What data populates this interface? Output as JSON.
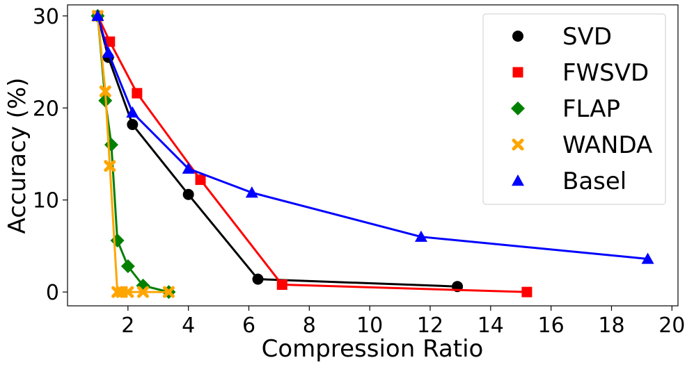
{
  "chart_data": {
    "type": "line",
    "title": "",
    "xlabel": "Compression Ratio",
    "ylabel": "Accuracy (%)",
    "xlim": [
      0,
      20.2
    ],
    "ylim": [
      -1.5,
      31.2
    ],
    "xticks": [
      2,
      4,
      6,
      8,
      10,
      12,
      14,
      16,
      18,
      20
    ],
    "yticks": [
      0,
      10,
      20,
      30
    ],
    "xtick_labels": [
      "2",
      "4",
      "6",
      "8",
      "10",
      "12",
      "14",
      "16",
      "18",
      "20"
    ],
    "ytick_labels": [
      "0",
      "10",
      "20",
      "30"
    ],
    "grid": false,
    "legend_position": "top-right",
    "series": [
      {
        "name": "SVD",
        "color": "#000000",
        "marker": "circle",
        "x": [
          1.0,
          1.35,
          2.15,
          4.0,
          6.3,
          12.9
        ],
        "y": [
          30.0,
          25.5,
          18.2,
          10.6,
          1.4,
          0.6
        ]
      },
      {
        "name": "FWSVD",
        "color": "#ff0000",
        "marker": "square",
        "x": [
          1.0,
          1.4,
          2.3,
          4.4,
          7.1,
          15.2
        ],
        "y": [
          30.0,
          27.2,
          21.6,
          12.2,
          0.8,
          0.0
        ]
      },
      {
        "name": "FLAP",
        "color": "#008000",
        "marker": "diamond",
        "x": [
          1.0,
          1.25,
          1.45,
          1.65,
          2.0,
          2.5,
          3.35
        ],
        "y": [
          30.0,
          20.8,
          16.0,
          5.6,
          2.8,
          0.7,
          0.0
        ]
      },
      {
        "name": "WANDA",
        "color": "#ffa500",
        "marker": "x",
        "x": [
          1.0,
          1.25,
          1.4,
          1.65,
          1.8,
          2.0,
          2.5,
          3.35
        ],
        "y": [
          30.0,
          21.8,
          13.7,
          0.0,
          0.0,
          0.0,
          0.0,
          0.0
        ]
      },
      {
        "name": "Basel",
        "color": "#0000ff",
        "marker": "triangle",
        "x": [
          1.0,
          1.35,
          2.15,
          4.0,
          6.1,
          11.7,
          19.2
        ],
        "y": [
          30.0,
          26.0,
          19.5,
          13.4,
          10.8,
          6.0,
          3.6
        ]
      }
    ]
  }
}
